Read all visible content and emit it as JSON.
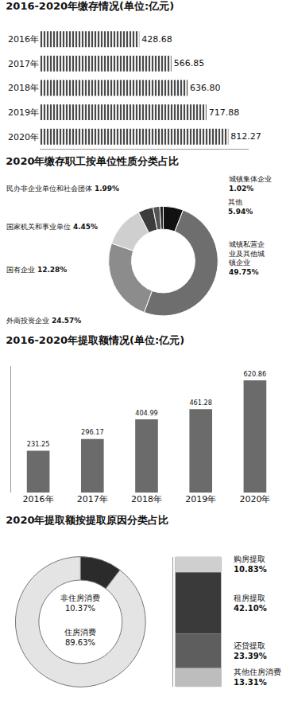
{
  "chart_data": [
    {
      "type": "bar",
      "orientation": "horizontal",
      "title": "2016-2020年缴存情况(单位:亿元)",
      "categories": [
        "2016年",
        "2017年",
        "2018年",
        "2019年",
        "2020年"
      ],
      "values": [
        428.68,
        566.85,
        636.8,
        717.88,
        812.27
      ],
      "value_labels": [
        "428.68",
        "566.85",
        "636.80",
        "717.88",
        "812.27"
      ],
      "color": "#4a4a4a",
      "xlim": [
        0,
        900
      ],
      "data_labels": true,
      "tick_labels": "y",
      "grid": false
    },
    {
      "type": "pie",
      "title": "2020年缴存职工按单位性质分类占比",
      "categories": [
        "其他",
        "城镇私营企业及其他城镇企业",
        "外商投资企业",
        "国有企业",
        "国家机关和事业单位",
        "民办非企业单位和社会团体",
        "城镇集体企业"
      ],
      "values": [
        5.94,
        49.75,
        24.57,
        12.28,
        4.45,
        1.99,
        1.02
      ],
      "value_labels": [
        "5.94%",
        "49.75%",
        "24.57%",
        "12.28%",
        "4.45%",
        "1.99%",
        "1.02%"
      ],
      "colors": [
        "#111111",
        "#6e6e6e",
        "#8c8c8c",
        "#cfcfcf",
        "#3c3c3c",
        "#555555",
        "#222222"
      ],
      "data_labels": true
    },
    {
      "type": "bar",
      "title": "2016-2020年提取额情况(单位:亿元)",
      "categories": [
        "2016年",
        "2017年",
        "2018年",
        "2019年",
        "2020年"
      ],
      "values": [
        231.25,
        296.17,
        404.99,
        461.28,
        620.86
      ],
      "color": "#6b6b6b",
      "ylim": [
        0,
        700
      ],
      "data_labels": true,
      "tick_labels": "x",
      "grid": false
    },
    {
      "type": "pie",
      "title": "2020年提取额按提取原因分类占比",
      "categories": [
        "非住房消费",
        "住房消费"
      ],
      "values": [
        10.37,
        89.63
      ],
      "value_labels": [
        "10.37%",
        "89.63%"
      ],
      "colors": [
        "#2b2b2b",
        "#e4e4e4"
      ],
      "data_labels": true
    },
    {
      "type": "bar",
      "stacked": true,
      "categories": [
        null
      ],
      "series": [
        {
          "name": "购房提取",
          "color": "#cfcfcf",
          "values": [
            10.83
          ],
          "value_labels": [
            "10.83%"
          ]
        },
        {
          "name": "租房提取",
          "color": "#3a3a3a",
          "values": [
            42.1
          ],
          "value_labels": [
            "42.10%"
          ]
        },
        {
          "name": "还贷提取",
          "color": "#5e5e5e",
          "values": [
            23.39
          ],
          "value_labels": [
            "23.39%"
          ]
        },
        {
          "name": "其他住房消费",
          "color": "#bdbdbd",
          "values": [
            13.31
          ],
          "value_labels": [
            "13.31%"
          ]
        }
      ],
      "ylim": [
        0,
        89.63
      ],
      "data_labels": true,
      "tick_labels": false
    }
  ]
}
